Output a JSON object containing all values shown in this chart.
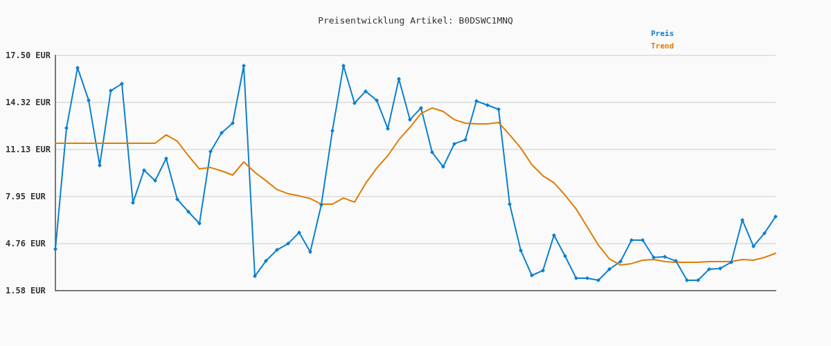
{
  "chart_data": {
    "type": "line",
    "title": "Preisentwicklung Artikel: B0DSWC1MNQ",
    "categories": [
      null,
      null,
      null,
      null,
      null,
      null,
      null,
      null,
      null,
      null,
      null,
      null,
      null,
      null,
      null,
      null,
      null,
      null,
      null,
      null,
      null,
      null,
      null,
      null,
      null,
      null,
      null,
      null,
      null,
      null,
      null,
      null,
      null,
      null,
      null,
      null,
      null,
      null,
      null,
      null,
      null,
      null,
      null,
      null,
      null,
      null,
      null,
      null,
      null,
      null,
      null,
      null,
      null,
      null,
      null,
      null,
      null,
      null,
      null,
      null,
      null,
      null,
      null,
      null,
      null,
      null
    ],
    "series": [
      {
        "name": "Preis",
        "color": "#0a7fcf",
        "marker": "diamond",
        "values": [
          4.39,
          12.58,
          16.66,
          14.46,
          10.06,
          15.11,
          15.58,
          7.53,
          9.73,
          9.02,
          10.52,
          7.76,
          6.92,
          6.12,
          10.99,
          12.26,
          12.91,
          16.8,
          2.56,
          3.59,
          4.34,
          4.76,
          5.51,
          4.2,
          7.39,
          12.4,
          16.8,
          14.27,
          15.07,
          14.46,
          12.54,
          15.91,
          13.15,
          13.94,
          10.94,
          9.96,
          11.51,
          11.79,
          14.41,
          14.13,
          13.85,
          7.43,
          4.3,
          2.61,
          2.94,
          5.33,
          3.92,
          2.42,
          2.42,
          2.28,
          3.03,
          3.55,
          5.0,
          5.0,
          3.83,
          3.87,
          3.59,
          2.28,
          2.28,
          3.03,
          3.08,
          3.5,
          6.36,
          4.58,
          5.47,
          6.59
        ]
      },
      {
        "name": "Trend",
        "color": "#e07b00",
        "marker": "none",
        "values": [
          11.55,
          11.55,
          11.55,
          11.55,
          11.55,
          11.55,
          11.55,
          11.55,
          11.55,
          11.55,
          12.12,
          11.69,
          10.71,
          9.82,
          9.91,
          9.68,
          9.4,
          10.29,
          9.59,
          9.02,
          8.42,
          8.14,
          7.99,
          7.81,
          7.43,
          7.43,
          7.85,
          7.57,
          8.84,
          9.87,
          10.71,
          11.79,
          12.63,
          13.57,
          13.94,
          13.71,
          13.15,
          12.91,
          12.86,
          12.86,
          12.96,
          12.12,
          11.23,
          10.1,
          9.35,
          8.88,
          8.04,
          7.1,
          5.89,
          4.67,
          3.73,
          3.31,
          3.41,
          3.64,
          3.69,
          3.55,
          3.5,
          3.5,
          3.5,
          3.55,
          3.55,
          3.55,
          3.69,
          3.64,
          3.83,
          4.11
        ]
      }
    ],
    "ylim": [
      1.58,
      17.5
    ],
    "yticks": [
      {
        "value": 1.58,
        "label": "1.58 EUR"
      },
      {
        "value": 4.76,
        "label": "4.76 EUR"
      },
      {
        "value": 7.95,
        "label": "7.95 EUR"
      },
      {
        "value": 11.13,
        "label": "11.13 EUR"
      },
      {
        "value": 14.32,
        "label": "14.32 EUR"
      },
      {
        "value": 17.5,
        "label": "17.50 EUR"
      }
    ],
    "grid": "y",
    "legend": "top right",
    "line_style": "solid"
  }
}
